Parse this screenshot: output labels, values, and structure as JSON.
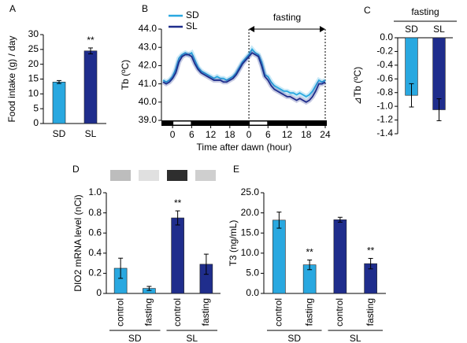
{
  "chart_data": [
    {
      "type": "bar",
      "panel": "A",
      "ylabel": "Food intake (g) / day",
      "categories": [
        "SD",
        "SL"
      ],
      "values": [
        14,
        24.5
      ],
      "errors": [
        0.5,
        1.0
      ],
      "colors": [
        "#29a8e0",
        "#1f2d8c"
      ],
      "significance": [
        null,
        "**"
      ],
      "ylim": [
        0,
        30
      ],
      "yticks": [
        0,
        5,
        10,
        15,
        20,
        25,
        30
      ]
    },
    {
      "type": "line",
      "panel": "B",
      "ylabel": "Tb (ºC)",
      "xlabel": "Time after dawn (hour)",
      "annotation": {
        "text": "fasting",
        "xrange": [
          24,
          48
        ]
      },
      "light_periods": [
        [
          0,
          6
        ],
        [
          24,
          30
        ]
      ],
      "x": [
        -3,
        -2,
        -1,
        0,
        1,
        2,
        3,
        4,
        5,
        6,
        7,
        8,
        9,
        10,
        11,
        12,
        13,
        14,
        15,
        16,
        17,
        18,
        19,
        20,
        21,
        22,
        23,
        24,
        25,
        26,
        27,
        28,
        29,
        30,
        31,
        32,
        33,
        34,
        35,
        36,
        37,
        38,
        39,
        40,
        41,
        42,
        43,
        44,
        45,
        46,
        47,
        48
      ],
      "series": [
        {
          "name": "SD",
          "color": "#29a8e0",
          "values": [
            41.2,
            41.1,
            41.2,
            41.4,
            41.8,
            42.4,
            42.6,
            42.7,
            42.6,
            42.7,
            42.3,
            41.9,
            41.7,
            41.6,
            41.5,
            41.4,
            41.3,
            41.4,
            41.3,
            41.3,
            41.2,
            41.3,
            41.4,
            41.6,
            41.9,
            42.2,
            42.4,
            42.6,
            42.9,
            42.7,
            42.6,
            42.2,
            41.5,
            41.4,
            41.1,
            40.9,
            40.8,
            40.7,
            40.6,
            40.6,
            40.5,
            40.5,
            40.4,
            40.5,
            40.4,
            40.3,
            40.4,
            40.6,
            40.9,
            41.2,
            41.1,
            41.2
          ]
        },
        {
          "name": "SL",
          "color": "#1f2d8c",
          "values": [
            41.1,
            41.0,
            41.1,
            41.3,
            41.6,
            42.2,
            42.5,
            42.6,
            42.6,
            42.5,
            42.1,
            41.8,
            41.6,
            41.5,
            41.4,
            41.3,
            41.2,
            41.2,
            41.2,
            41.1,
            41.1,
            41.2,
            41.3,
            41.5,
            41.8,
            42.1,
            42.3,
            42.5,
            42.7,
            42.6,
            42.5,
            42.0,
            41.4,
            41.2,
            40.9,
            40.7,
            40.6,
            40.5,
            40.4,
            40.3,
            40.3,
            40.2,
            40.1,
            40.2,
            40.1,
            40.0,
            40.1,
            40.3,
            40.6,
            41.0,
            41.0,
            41.1
          ]
        }
      ],
      "xlim": [
        -3.5,
        48.5
      ],
      "xticks": [
        0,
        6,
        12,
        18,
        {
          "value": 24,
          "label": "0"
        },
        {
          "value": 30,
          "label": "6"
        },
        {
          "value": 36,
          "label": "12"
        },
        {
          "value": 42,
          "label": "18"
        },
        {
          "value": 48,
          "label": "24"
        }
      ],
      "ylim": [
        39,
        44
      ],
      "yticks": [
        {
          "value": 39,
          "label": "39.0"
        },
        {
          "value": 40,
          "label": "40.0"
        },
        {
          "value": 41,
          "label": "41.0"
        },
        {
          "value": 42,
          "label": "42.0"
        },
        {
          "value": 43,
          "label": "43.0"
        },
        {
          "value": 44,
          "label": "44.0"
        }
      ]
    },
    {
      "type": "bar",
      "panel": "C",
      "title": "fasting",
      "ylabel": "⊿Tb (ºC)",
      "categories": [
        "SD",
        "SL"
      ],
      "values": [
        -0.84,
        -1.05
      ],
      "errors": [
        0.17,
        0.16
      ],
      "colors": [
        "#29a8e0",
        "#1f2d8c"
      ],
      "ylim": [
        -1.4,
        0
      ],
      "yticks": [
        {
          "value": 0,
          "label": "0.0"
        },
        -0.2,
        -0.4,
        -0.6,
        -0.8,
        {
          "value": -1,
          "label": "-1.0"
        },
        -1.2,
        -1.4
      ]
    },
    {
      "type": "bar",
      "panel": "D",
      "ylabel": "DIO2 mRNA level (nCi)",
      "categories": [
        "control",
        "fasting",
        "control",
        "fasting"
      ],
      "groups": [
        "SD",
        "SL"
      ],
      "values": [
        0.25,
        0.05,
        0.75,
        0.29
      ],
      "errors": [
        0.1,
        0.02,
        0.07,
        0.1
      ],
      "colors": [
        "#29a8e0",
        "#29a8e0",
        "#1f2d8c",
        "#1f2d8c"
      ],
      "significance": [
        null,
        null,
        "**",
        null
      ],
      "ylim": [
        0,
        1
      ],
      "yticks": [
        0,
        0.2,
        0.4,
        0.6,
        0.8,
        {
          "value": 1,
          "label": "1.0"
        }
      ]
    },
    {
      "type": "bar",
      "panel": "E",
      "ylabel": "T3 (ng/mL)",
      "categories": [
        "control",
        "fasting",
        "control",
        "fasting"
      ],
      "groups": [
        "SD",
        "SL"
      ],
      "values": [
        18.2,
        7.1,
        18.3,
        7.4
      ],
      "errors": [
        2.0,
        1.2,
        0.6,
        1.3
      ],
      "colors": [
        "#29a8e0",
        "#29a8e0",
        "#1f2d8c",
        "#1f2d8c"
      ],
      "significance": [
        null,
        "**",
        null,
        "**"
      ],
      "ylim": [
        0,
        25
      ],
      "yticks": [
        {
          "value": 0,
          "label": "0.0"
        },
        {
          "value": 5,
          "label": "5.0"
        },
        {
          "value": 10,
          "label": "10.0"
        },
        {
          "value": 15,
          "label": "15.0"
        },
        {
          "value": 20,
          "label": "20.0"
        },
        {
          "value": 25,
          "label": "25.0"
        }
      ]
    }
  ]
}
